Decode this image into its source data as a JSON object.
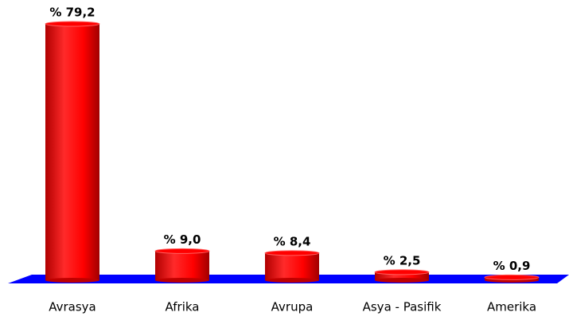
{
  "chart_data": {
    "type": "bar",
    "categories": [
      "Avrasya",
      "Afrika",
      "Avrupa",
      "Asya - Pasifik",
      "Amerika"
    ],
    "values": [
      79.2,
      9.0,
      8.4,
      2.5,
      0.9
    ],
    "value_labels": [
      "% 79,2",
      "% 9,0",
      "% 8,4",
      "% 2,5",
      "% 0,9"
    ],
    "color": "#ff0000",
    "floor_color": "#0000ff"
  }
}
